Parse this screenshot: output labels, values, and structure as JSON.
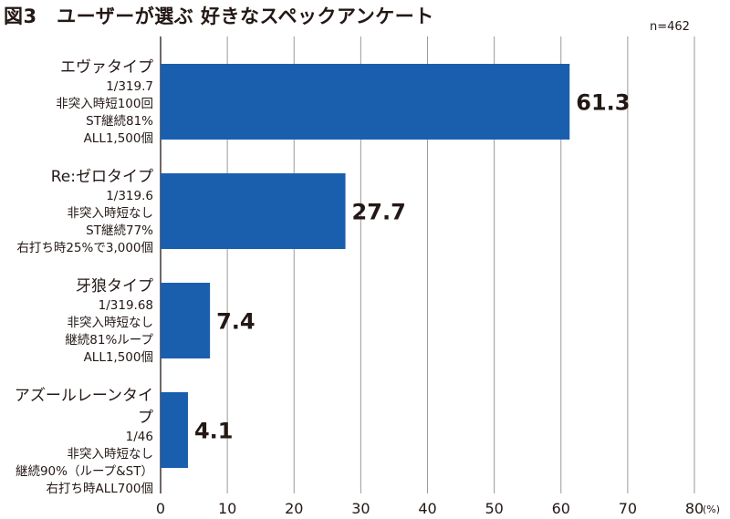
{
  "title": "図3　ユーザーが選ぶ 好きなスペックアンケート",
  "sample": "n=462",
  "chart_data": {
    "type": "bar",
    "orientation": "horizontal",
    "title": "図3　ユーザーが選ぶ 好きなスペックアンケート",
    "xlabel": "(%)",
    "xlim": [
      0,
      80
    ],
    "xticks": [
      "0",
      "10",
      "20",
      "30",
      "40",
      "50",
      "60",
      "70",
      "80"
    ],
    "unit_label": "(%)",
    "grid": true,
    "color": "#1a5fae",
    "categories": [
      {
        "name": "エヴァタイプ",
        "details": [
          "1/319.7",
          "非突入時短100回",
          "ST継続81%",
          "ALL1,500個"
        ]
      },
      {
        "name": "Re:ゼロタイプ",
        "details": [
          "1/319.6",
          "非突入時短なし",
          "ST継続77%",
          "右打ち時25%で3,000個"
        ]
      },
      {
        "name": "牙狼タイプ",
        "details": [
          "1/319.68",
          "非突入時短なし",
          "継続81%ループ",
          "ALL1,500個"
        ]
      },
      {
        "name": "アズールレーンタイプ",
        "details": [
          "1/46",
          "非突入時短なし",
          "継続90%（ループ&ST）",
          "右打ち時ALL700個"
        ]
      }
    ],
    "values": [
      61.3,
      27.7,
      7.4,
      4.1
    ],
    "value_labels": [
      "61.3",
      "27.7",
      "7.4",
      "4.1"
    ]
  }
}
